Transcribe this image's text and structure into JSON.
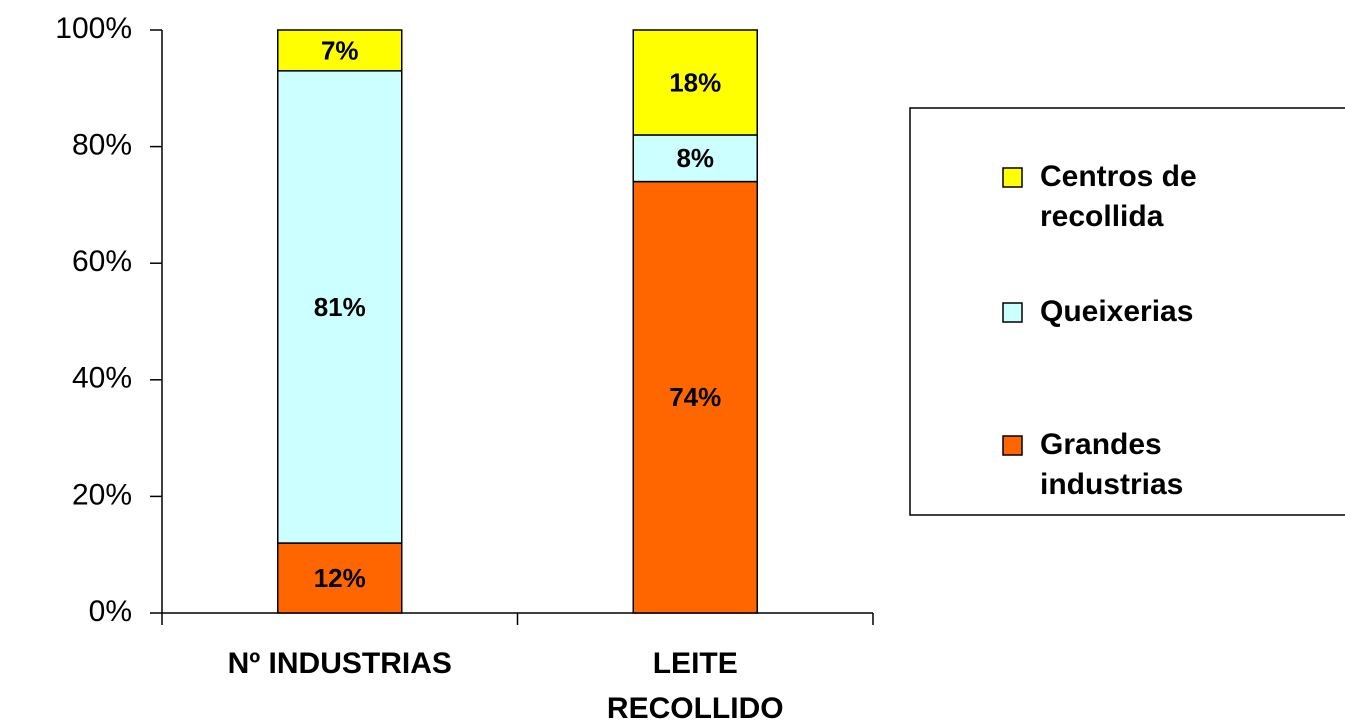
{
  "chart_data": {
    "type": "stacked_bar",
    "categories": [
      "Nº INDUSTRIAS",
      "LEITE\nRECOLLIDO"
    ],
    "series": [
      {
        "name": "Grandes\nindustrias",
        "color": "#ff6600",
        "values": [
          12,
          74
        ],
        "value_labels": [
          "12%",
          "74%"
        ]
      },
      {
        "name": "Queixerias",
        "color": "#ccffff",
        "values": [
          81,
          8
        ],
        "value_labels": [
          "81%",
          "8%"
        ]
      },
      {
        "name": "Centros de\nrecollida",
        "color": "#ffff00",
        "values": [
          7,
          18
        ],
        "value_labels": [
          "7%",
          "18%"
        ]
      }
    ],
    "ylim": [
      0,
      100
    ],
    "yticks": [
      {
        "value": 0,
        "label": "0%"
      },
      {
        "value": 20,
        "label": "20%"
      },
      {
        "value": 40,
        "label": "40%"
      },
      {
        "value": 60,
        "label": "60%"
      },
      {
        "value": 80,
        "label": "80%"
      },
      {
        "value": 100,
        "label": "100%"
      }
    ],
    "legend": "right"
  }
}
